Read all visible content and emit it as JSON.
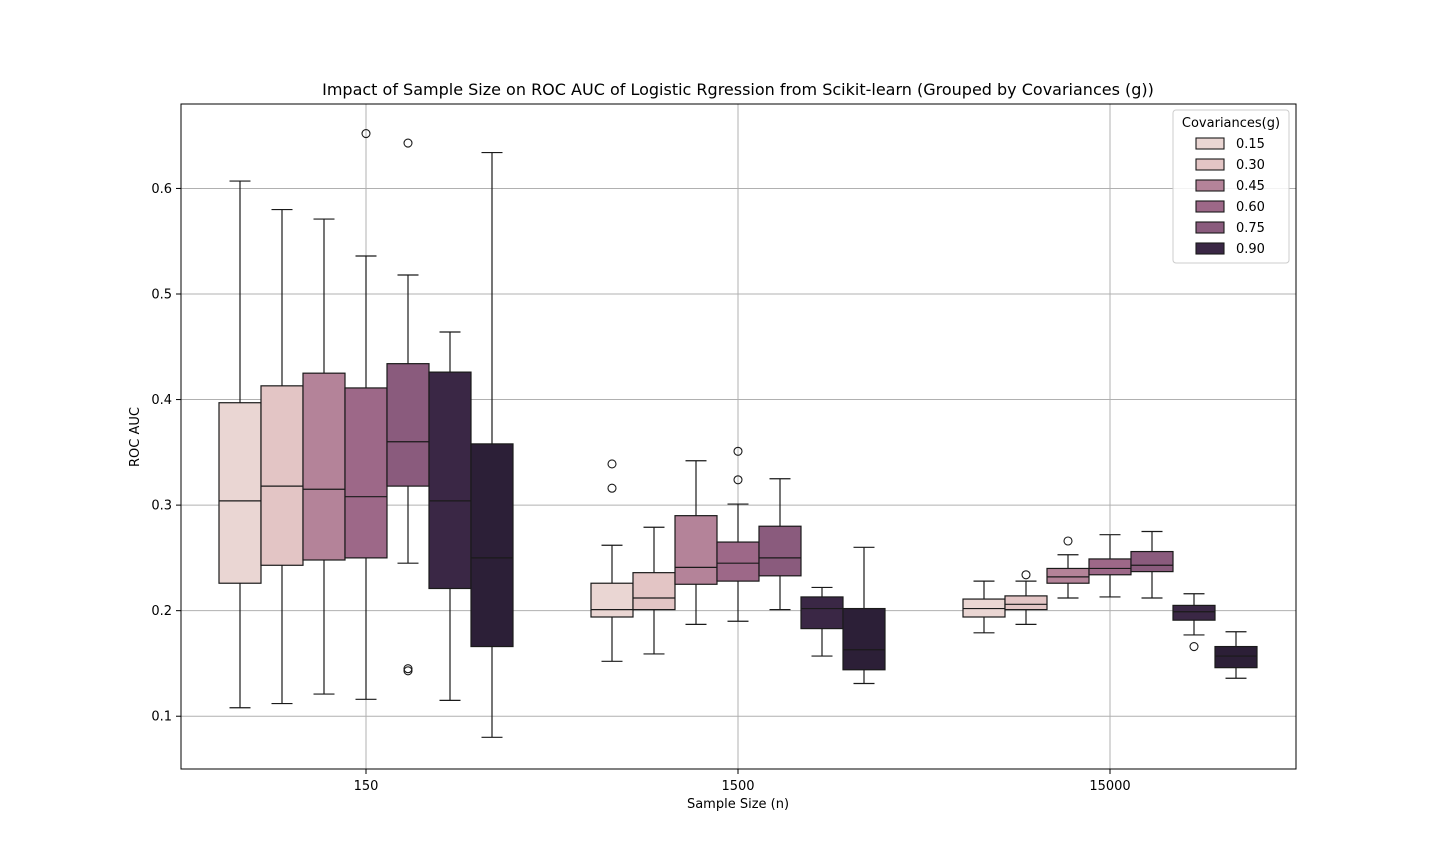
{
  "chart_data": {
    "type": "boxplot",
    "title": "Impact of Sample Size on ROC AUC of Logistic Rgression from Scikit-learn (Grouped by Covariances (g))",
    "xlabel": "Sample Size (n)",
    "ylabel": "ROC AUC",
    "categories": [
      "150",
      "1500",
      "15000"
    ],
    "ylim": [
      0.05,
      0.68
    ],
    "yticks": [
      0.1,
      0.2,
      0.3,
      0.4,
      0.5,
      0.6
    ],
    "ytick_labels": [
      "0.1",
      "0.2",
      "0.3",
      "0.4",
      "0.5",
      "0.6"
    ],
    "grid": true,
    "legend": {
      "title": "Covariances(g)",
      "placement": "top-right"
    },
    "series": [
      {
        "name": "0.15",
        "color": "#ead6d3",
        "boxes": [
          {
            "category": "150",
            "whislo": 0.108,
            "q1": 0.226,
            "median": 0.304,
            "q3": 0.397,
            "whishi": 0.607,
            "fliers": []
          },
          {
            "category": "1500",
            "whislo": 0.152,
            "q1": 0.194,
            "median": 0.201,
            "q3": 0.226,
            "whishi": 0.262,
            "fliers": [
              0.339,
              0.316
            ]
          },
          {
            "category": "15000",
            "whislo": 0.179,
            "q1": 0.194,
            "median": 0.202,
            "q3": 0.211,
            "whishi": 0.228,
            "fliers": []
          }
        ]
      },
      {
        "name": "0.30",
        "color": "#e3c5c5",
        "boxes": [
          {
            "category": "150",
            "whislo": 0.112,
            "q1": 0.243,
            "median": 0.318,
            "q3": 0.413,
            "whishi": 0.58,
            "fliers": []
          },
          {
            "category": "1500",
            "whislo": 0.159,
            "q1": 0.201,
            "median": 0.212,
            "q3": 0.236,
            "whishi": 0.279,
            "fliers": []
          },
          {
            "category": "15000",
            "whislo": 0.187,
            "q1": 0.201,
            "median": 0.206,
            "q3": 0.214,
            "whishi": 0.228,
            "fliers": [
              0.234
            ]
          }
        ]
      },
      {
        "name": "0.45",
        "color": "#b48399",
        "boxes": [
          {
            "category": "150",
            "whislo": 0.121,
            "q1": 0.248,
            "median": 0.315,
            "q3": 0.425,
            "whishi": 0.571,
            "fliers": []
          },
          {
            "category": "1500",
            "whislo": 0.187,
            "q1": 0.225,
            "median": 0.241,
            "q3": 0.29,
            "whishi": 0.342,
            "fliers": []
          },
          {
            "category": "15000",
            "whislo": 0.212,
            "q1": 0.226,
            "median": 0.232,
            "q3": 0.24,
            "whishi": 0.253,
            "fliers": [
              0.266
            ]
          }
        ]
      },
      {
        "name": "0.60",
        "color": "#9d6888",
        "boxes": [
          {
            "category": "150",
            "whislo": 0.116,
            "q1": 0.25,
            "median": 0.308,
            "q3": 0.411,
            "whishi": 0.536,
            "fliers": [
              0.652
            ]
          },
          {
            "category": "1500",
            "whislo": 0.19,
            "q1": 0.228,
            "median": 0.245,
            "q3": 0.265,
            "whishi": 0.301,
            "fliers": [
              0.351,
              0.324
            ]
          },
          {
            "category": "15000",
            "whislo": 0.213,
            "q1": 0.234,
            "median": 0.24,
            "q3": 0.249,
            "whishi": 0.272,
            "fliers": []
          }
        ]
      },
      {
        "name": "0.75",
        "color": "#8a5b7d",
        "boxes": [
          {
            "category": "150",
            "whislo": 0.245,
            "q1": 0.318,
            "median": 0.36,
            "q3": 0.434,
            "whishi": 0.518,
            "fliers": [
              0.643,
              0.145,
              0.143
            ]
          },
          {
            "category": "1500",
            "whislo": 0.201,
            "q1": 0.233,
            "median": 0.25,
            "q3": 0.28,
            "whishi": 0.325,
            "fliers": []
          },
          {
            "category": "15000",
            "whislo": 0.212,
            "q1": 0.237,
            "median": 0.243,
            "q3": 0.256,
            "whishi": 0.275,
            "fliers": []
          }
        ]
      },
      {
        "name": "0.90",
        "color": "#3a2745",
        "boxes": [
          {
            "category": "150",
            "whislo": 0.115,
            "q1": 0.221,
            "median": 0.304,
            "q3": 0.426,
            "whishi": 0.464,
            "fliers": []
          },
          {
            "category": "1500",
            "whislo": 0.157,
            "q1": 0.183,
            "median": 0.202,
            "q3": 0.213,
            "whishi": 0.222,
            "fliers": []
          },
          {
            "category": "15000",
            "whislo": 0.177,
            "q1": 0.191,
            "median": 0.199,
            "q3": 0.205,
            "whishi": 0.216,
            "fliers": [
              0.166
            ]
          }
        ]
      },
      {
        "name": "",
        "color": "#2c1f37",
        "boxes": [
          {
            "category": "150",
            "whislo": 0.08,
            "q1": 0.166,
            "median": 0.25,
            "q3": 0.358,
            "whishi": 0.634,
            "fliers": []
          },
          {
            "category": "1500",
            "whislo": 0.131,
            "q1": 0.144,
            "median": 0.163,
            "q3": 0.202,
            "whishi": 0.26,
            "fliers": []
          },
          {
            "category": "15000",
            "whislo": 0.136,
            "q1": 0.146,
            "median": 0.157,
            "q3": 0.166,
            "whishi": 0.18,
            "fliers": []
          }
        ]
      }
    ]
  }
}
